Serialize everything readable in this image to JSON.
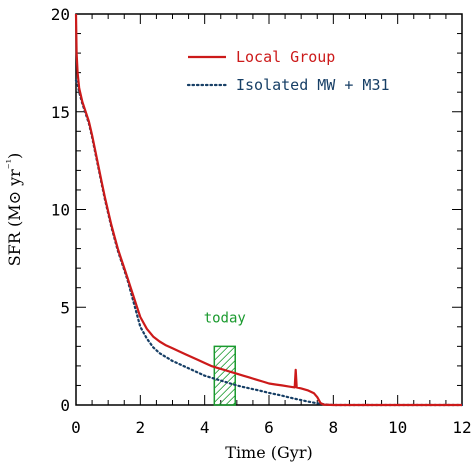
{
  "chart_data": {
    "type": "line",
    "title": "",
    "xlabel": "Time (Gyr)",
    "ylabel": "SFR (M⊙ yr⁻¹)",
    "xlim": [
      0,
      12
    ],
    "ylim": [
      0,
      20
    ],
    "x_ticks": [
      0,
      2,
      4,
      6,
      8,
      10,
      12
    ],
    "y_ticks": [
      0,
      5,
      10,
      15,
      20
    ],
    "legend_position": "top-right",
    "series": [
      {
        "name": "Local Group",
        "style": "solid",
        "color": "#cc1a1a",
        "points": [
          [
            0.0,
            20.0
          ],
          [
            0.02,
            18.0
          ],
          [
            0.05,
            17.0
          ],
          [
            0.1,
            16.2
          ],
          [
            0.2,
            15.5
          ],
          [
            0.3,
            15.0
          ],
          [
            0.4,
            14.5
          ],
          [
            0.5,
            13.8
          ],
          [
            0.6,
            13.0
          ],
          [
            0.7,
            12.2
          ],
          [
            0.8,
            11.4
          ],
          [
            0.9,
            10.6
          ],
          [
            1.0,
            9.9
          ],
          [
            1.1,
            9.2
          ],
          [
            1.2,
            8.6
          ],
          [
            1.3,
            8.0
          ],
          [
            1.4,
            7.5
          ],
          [
            1.5,
            7.0
          ],
          [
            1.6,
            6.5
          ],
          [
            1.7,
            6.0
          ],
          [
            1.8,
            5.5
          ],
          [
            1.9,
            5.0
          ],
          [
            2.0,
            4.5
          ],
          [
            2.2,
            3.9
          ],
          [
            2.4,
            3.5
          ],
          [
            2.6,
            3.25
          ],
          [
            2.8,
            3.05
          ],
          [
            3.0,
            2.9
          ],
          [
            3.2,
            2.75
          ],
          [
            3.4,
            2.6
          ],
          [
            3.6,
            2.45
          ],
          [
            3.8,
            2.3
          ],
          [
            4.0,
            2.15
          ],
          [
            4.2,
            2.0
          ],
          [
            4.4,
            1.9
          ],
          [
            4.6,
            1.8
          ],
          [
            4.8,
            1.7
          ],
          [
            5.0,
            1.6
          ],
          [
            5.2,
            1.5
          ],
          [
            5.4,
            1.4
          ],
          [
            5.6,
            1.3
          ],
          [
            5.8,
            1.2
          ],
          [
            6.0,
            1.1
          ],
          [
            6.2,
            1.05
          ],
          [
            6.4,
            1.0
          ],
          [
            6.6,
            0.95
          ],
          [
            6.8,
            0.9
          ],
          [
            6.83,
            1.8
          ],
          [
            6.86,
            0.9
          ],
          [
            7.0,
            0.85
          ],
          [
            7.2,
            0.75
          ],
          [
            7.4,
            0.6
          ],
          [
            7.5,
            0.4
          ],
          [
            7.6,
            0.1
          ],
          [
            7.7,
            0.02
          ],
          [
            8.0,
            0.0
          ],
          [
            12.0,
            0.0
          ]
        ]
      },
      {
        "name": "Isolated MW + M31",
        "style": "dotted",
        "color": "#173f66",
        "points": [
          [
            0.0,
            16.6
          ],
          [
            0.05,
            16.4
          ],
          [
            0.1,
            16.0
          ],
          [
            0.2,
            15.4
          ],
          [
            0.3,
            14.9
          ],
          [
            0.4,
            14.4
          ],
          [
            0.5,
            13.7
          ],
          [
            0.6,
            12.9
          ],
          [
            0.7,
            12.1
          ],
          [
            0.8,
            11.3
          ],
          [
            0.9,
            10.5
          ],
          [
            1.0,
            9.8
          ],
          [
            1.1,
            9.1
          ],
          [
            1.2,
            8.5
          ],
          [
            1.3,
            7.9
          ],
          [
            1.4,
            7.4
          ],
          [
            1.5,
            6.9
          ],
          [
            1.6,
            6.4
          ],
          [
            1.7,
            5.8
          ],
          [
            1.8,
            5.2
          ],
          [
            1.9,
            4.6
          ],
          [
            2.0,
            4.0
          ],
          [
            2.2,
            3.4
          ],
          [
            2.4,
            2.95
          ],
          [
            2.6,
            2.65
          ],
          [
            2.8,
            2.45
          ],
          [
            3.0,
            2.25
          ],
          [
            3.2,
            2.1
          ],
          [
            3.4,
            1.95
          ],
          [
            3.6,
            1.8
          ],
          [
            3.8,
            1.65
          ],
          [
            4.0,
            1.5
          ],
          [
            4.2,
            1.4
          ],
          [
            4.4,
            1.3
          ],
          [
            4.6,
            1.2
          ],
          [
            4.8,
            1.1
          ],
          [
            5.0,
            1.0
          ],
          [
            5.2,
            0.92
          ],
          [
            5.4,
            0.85
          ],
          [
            5.6,
            0.78
          ],
          [
            5.8,
            0.7
          ],
          [
            6.0,
            0.62
          ],
          [
            6.2,
            0.55
          ],
          [
            6.4,
            0.48
          ],
          [
            6.6,
            0.4
          ],
          [
            6.8,
            0.32
          ],
          [
            7.0,
            0.25
          ],
          [
            7.2,
            0.18
          ],
          [
            7.4,
            0.12
          ],
          [
            7.6,
            0.06
          ],
          [
            7.8,
            0.02
          ],
          [
            8.0,
            0.0
          ],
          [
            12.0,
            0.0
          ]
        ]
      }
    ],
    "annotation": {
      "label": "today",
      "color": "#1a9a2e",
      "x_range": [
        4.3,
        4.95
      ],
      "y_range": [
        0.0,
        3.0
      ]
    }
  }
}
